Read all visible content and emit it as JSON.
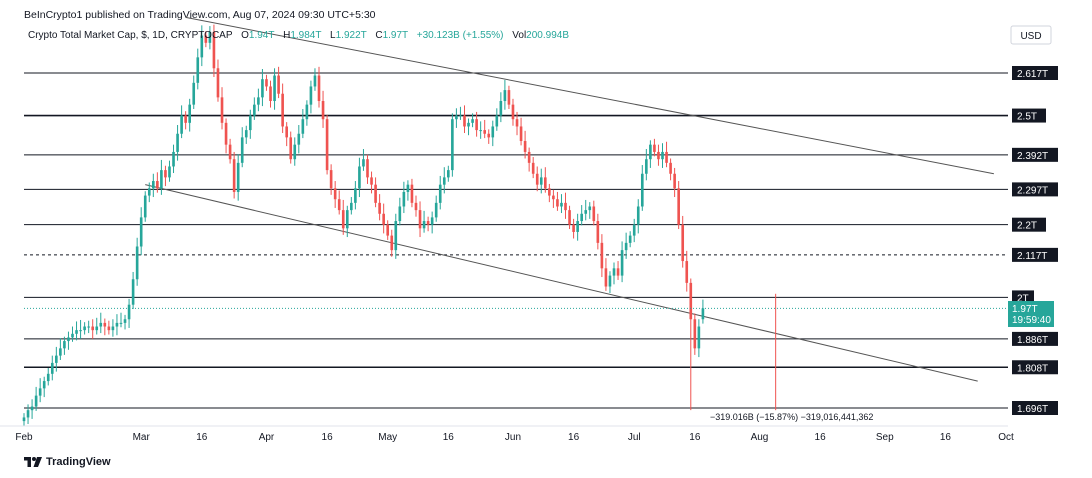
{
  "header": {
    "published_by": "BeInCrypto1 published on TradingView.com, Aug 07, 2024 09:30 UTC+5:30"
  },
  "legend": {
    "symbol": "Crypto Total Market Cap, $, 1D, CRYPTOCAP",
    "open_label": "O",
    "open": "1.94T",
    "high_label": "H",
    "high": "1.984T",
    "low_label": "L",
    "low": "1.922T",
    "close_label": "C",
    "close": "1.97T",
    "change": "+30.123B (+1.55%)",
    "vol_label": "Vol",
    "volume": "200.994B"
  },
  "currency_badge": "USD",
  "last_price": {
    "value": "1.97T",
    "countdown": "19:59:40",
    "color": "#26a69a"
  },
  "measure_label": "−319.016B (−15.87%) −319,016,441,362",
  "branding": {
    "name": "TradingView"
  },
  "colors": {
    "up": "#26a69a",
    "down": "#ef5350",
    "level": "#131722",
    "trend": "#555555"
  },
  "chart_data": {
    "type": "candlestick",
    "title": "Crypto Total Market Cap, $, 1D, CRYPTOCAP",
    "ylabel": "USD",
    "ylim": [
      1.64,
      2.78
    ],
    "x_ticks": [
      "Feb",
      "Mar",
      "16",
      "Apr",
      "16",
      "May",
      "16",
      "Jun",
      "16",
      "Jul",
      "16",
      "Aug",
      "16",
      "Sep",
      "16",
      "Oct"
    ],
    "x_tick_dates": [
      "2024-02-01",
      "2024-03-01",
      "2024-03-16",
      "2024-04-01",
      "2024-04-16",
      "2024-05-01",
      "2024-05-16",
      "2024-06-01",
      "2024-06-16",
      "2024-07-01",
      "2024-07-16",
      "2024-08-01",
      "2024-08-16",
      "2024-09-01",
      "2024-09-16",
      "2024-10-01"
    ],
    "x_start": "2024-02-01",
    "horizontal_levels": [
      {
        "value": 2.617,
        "label": "2.617T",
        "style": "solid"
      },
      {
        "value": 2.5,
        "label": "2.5T",
        "style": "solid-bold"
      },
      {
        "value": 2.392,
        "label": "2.392T",
        "style": "solid"
      },
      {
        "value": 2.297,
        "label": "2.297T",
        "style": "solid"
      },
      {
        "value": 2.2,
        "label": "2.2T",
        "style": "solid"
      },
      {
        "value": 2.117,
        "label": "2.117T",
        "style": "dashed"
      },
      {
        "value": 2.0,
        "label": "2T",
        "style": "solid"
      },
      {
        "value": 1.886,
        "label": "1.886T",
        "style": "solid"
      },
      {
        "value": 1.808,
        "label": "1.808T",
        "style": "solid-bold"
      },
      {
        "value": 1.696,
        "label": "1.696T",
        "style": "solid"
      }
    ],
    "trendlines": [
      {
        "name": "upper-channel",
        "from": [
          "2024-03-12",
          2.77
        ],
        "to": [
          "2024-09-28",
          2.34
        ]
      },
      {
        "name": "lower-channel",
        "from": [
          "2024-03-02",
          2.31
        ],
        "to": [
          "2024-09-24",
          1.77
        ]
      }
    ],
    "measurement": {
      "from": [
        "2024-08-05",
        2.01
      ],
      "to": [
        "2024-08-05",
        1.69
      ],
      "change": "-319.016B (-15.87%)"
    },
    "closes": [
      1.67,
      1.69,
      1.7,
      1.73,
      1.75,
      1.77,
      1.79,
      1.82,
      1.84,
      1.86,
      1.88,
      1.89,
      1.9,
      1.91,
      1.91,
      1.92,
      1.92,
      1.91,
      1.92,
      1.93,
      1.92,
      1.91,
      1.92,
      1.93,
      1.93,
      1.94,
      1.98,
      2.05,
      2.14,
      2.22,
      2.28,
      2.3,
      2.32,
      2.3,
      2.35,
      2.33,
      2.36,
      2.4,
      2.45,
      2.5,
      2.48,
      2.53,
      2.59,
      2.66,
      2.72,
      2.7,
      2.73,
      2.63,
      2.55,
      2.48,
      2.42,
      2.38,
      2.29,
      2.37,
      2.44,
      2.46,
      2.5,
      2.53,
      2.55,
      2.6,
      2.58,
      2.54,
      2.61,
      2.56,
      2.47,
      2.44,
      2.38,
      2.42,
      2.45,
      2.49,
      2.53,
      2.58,
      2.61,
      2.54,
      2.49,
      2.35,
      2.3,
      2.27,
      2.24,
      2.19,
      2.24,
      2.26,
      2.3,
      2.36,
      2.38,
      2.33,
      2.31,
      2.26,
      2.23,
      2.2,
      2.17,
      2.13,
      2.21,
      2.25,
      2.29,
      2.31,
      2.26,
      2.24,
      2.19,
      2.21,
      2.2,
      2.22,
      2.26,
      2.31,
      2.33,
      2.35,
      2.49,
      2.5,
      2.5,
      2.47,
      2.48,
      2.49,
      2.46,
      2.46,
      2.45,
      2.44,
      2.47,
      2.5,
      2.54,
      2.57,
      2.53,
      2.49,
      2.47,
      2.43,
      2.4,
      2.37,
      2.34,
      2.31,
      2.33,
      2.3,
      2.28,
      2.27,
      2.25,
      2.26,
      2.24,
      2.2,
      2.18,
      2.21,
      2.23,
      2.24,
      2.25,
      2.21,
      2.15,
      2.08,
      2.03,
      2.06,
      2.08,
      2.06,
      2.13,
      2.15,
      2.17,
      2.2,
      2.25,
      2.34,
      2.38,
      2.42,
      2.4,
      2.38,
      2.4,
      2.37,
      2.34,
      2.3,
      2.2,
      2.1,
      2.04,
      1.94,
      1.86,
      1.92,
      1.97
    ],
    "opens": [
      1.66,
      1.67,
      1.69,
      1.7,
      1.73,
      1.75,
      1.77,
      1.79,
      1.82,
      1.84,
      1.86,
      1.88,
      1.89,
      1.9,
      1.91,
      1.91,
      1.92,
      1.92,
      1.91,
      1.92,
      1.93,
      1.92,
      1.91,
      1.92,
      1.93,
      1.93,
      1.94,
      1.98,
      2.05,
      2.14,
      2.22,
      2.28,
      2.3,
      2.32,
      2.3,
      2.35,
      2.33,
      2.36,
      2.4,
      2.45,
      2.5,
      2.48,
      2.53,
      2.59,
      2.66,
      2.72,
      2.7,
      2.73,
      2.63,
      2.55,
      2.48,
      2.42,
      2.38,
      2.29,
      2.37,
      2.44,
      2.46,
      2.5,
      2.53,
      2.55,
      2.6,
      2.58,
      2.54,
      2.61,
      2.56,
      2.47,
      2.44,
      2.38,
      2.42,
      2.45,
      2.49,
      2.53,
      2.58,
      2.61,
      2.54,
      2.49,
      2.35,
      2.3,
      2.27,
      2.24,
      2.19,
      2.24,
      2.26,
      2.3,
      2.36,
      2.38,
      2.33,
      2.31,
      2.26,
      2.23,
      2.2,
      2.17,
      2.13,
      2.21,
      2.25,
      2.29,
      2.31,
      2.26,
      2.24,
      2.19,
      2.21,
      2.2,
      2.22,
      2.26,
      2.31,
      2.33,
      2.35,
      2.49,
      2.5,
      2.5,
      2.47,
      2.48,
      2.49,
      2.46,
      2.46,
      2.45,
      2.44,
      2.47,
      2.5,
      2.54,
      2.57,
      2.53,
      2.49,
      2.47,
      2.43,
      2.4,
      2.37,
      2.34,
      2.31,
      2.33,
      2.3,
      2.28,
      2.27,
      2.25,
      2.26,
      2.24,
      2.2,
      2.18,
      2.21,
      2.23,
      2.24,
      2.25,
      2.21,
      2.15,
      2.08,
      2.03,
      2.06,
      2.08,
      2.06,
      2.13,
      2.15,
      2.17,
      2.2,
      2.25,
      2.34,
      2.38,
      2.42,
      2.4,
      2.38,
      2.4,
      2.37,
      2.34,
      2.3,
      2.2,
      2.1,
      2.04,
      1.94,
      1.86,
      1.94
    ],
    "lows_override": {
      "165": 1.69
    }
  }
}
